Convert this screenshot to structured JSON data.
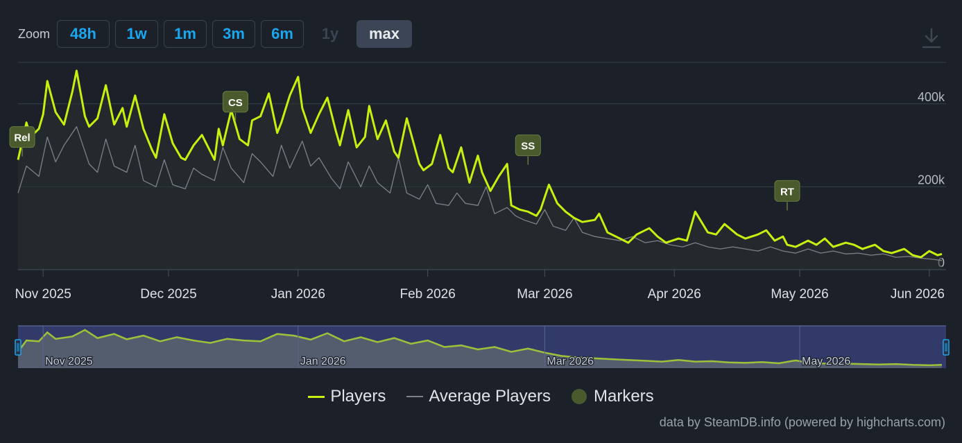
{
  "zoom": {
    "label": "Zoom",
    "buttons": [
      {
        "label": "48h",
        "state": "normal"
      },
      {
        "label": "1w",
        "state": "normal"
      },
      {
        "label": "1m",
        "state": "normal"
      },
      {
        "label": "3m",
        "state": "normal"
      },
      {
        "label": "6m",
        "state": "normal"
      },
      {
        "label": "1y",
        "state": "disabled"
      },
      {
        "label": "max",
        "state": "active"
      }
    ]
  },
  "download_icon": "download-icon",
  "credit": "data by SteamDB.info (powered by highcharts.com)",
  "colors": {
    "background": "#1b2029",
    "players": "#c6f00e",
    "average": "#7d8288",
    "marker": "#4a5a2c",
    "navigator_mask": "#333c6b",
    "grid": "#3a414c"
  },
  "chart_data": {
    "type": "line",
    "x_unit": "date",
    "xlim": [
      "2025-10-26",
      "2026-06-05"
    ],
    "ylim": [
      0,
      500000
    ],
    "y_ticks": [
      {
        "value": 0,
        "label": "0"
      },
      {
        "value": 200000,
        "label": "200k"
      },
      {
        "value": 400000,
        "label": "400k"
      }
    ],
    "x_ticks": [
      {
        "date": "2025-11-01",
        "label": "Nov 2025"
      },
      {
        "date": "2025-12-01",
        "label": "Dec 2025"
      },
      {
        "date": "2026-01-01",
        "label": "Jan 2026"
      },
      {
        "date": "2026-02-01",
        "label": "Feb 2026"
      },
      {
        "date": "2026-03-01",
        "label": "Mar 2026"
      },
      {
        "date": "2026-04-01",
        "label": "Apr 2026"
      },
      {
        "date": "2026-05-01",
        "label": "May 2026"
      },
      {
        "date": "2026-06-01",
        "label": "Jun 2026"
      }
    ],
    "grid": true,
    "legend_position": "bottom-center",
    "series": [
      {
        "name": "Players",
        "color": "#c6f00e",
        "x": [
          "2025-10-26",
          "2025-10-28",
          "2025-10-29",
          "2025-10-31",
          "2025-11-01",
          "2025-11-02",
          "2025-11-04",
          "2025-11-06",
          "2025-11-08",
          "2025-11-09",
          "2025-11-11",
          "2025-11-12",
          "2025-11-14",
          "2025-11-16",
          "2025-11-18",
          "2025-11-20",
          "2025-11-21",
          "2025-11-23",
          "2025-11-25",
          "2025-11-27",
          "2025-11-28",
          "2025-11-30",
          "2025-12-02",
          "2025-12-04",
          "2025-12-05",
          "2025-12-07",
          "2025-12-09",
          "2025-12-12",
          "2025-12-13",
          "2025-12-14",
          "2025-12-16",
          "2025-12-18",
          "2025-12-20",
          "2025-12-21",
          "2025-12-23",
          "2025-12-25",
          "2025-12-27",
          "2025-12-28",
          "2025-12-30",
          "2026-01-01",
          "2026-01-02",
          "2026-01-04",
          "2026-01-06",
          "2026-01-08",
          "2026-01-10",
          "2026-01-11",
          "2026-01-13",
          "2026-01-15",
          "2026-01-17",
          "2026-01-18",
          "2026-01-20",
          "2026-01-22",
          "2026-01-24",
          "2026-01-25",
          "2026-01-27",
          "2026-01-30",
          "2026-01-31",
          "2026-02-02",
          "2026-02-04",
          "2026-02-06",
          "2026-02-07",
          "2026-02-09",
          "2026-02-11",
          "2026-02-13",
          "2026-02-14",
          "2026-02-16",
          "2026-02-18",
          "2026-02-20",
          "2026-02-21",
          "2026-02-23",
          "2026-02-25",
          "2026-02-27",
          "2026-02-28",
          "2026-03-02",
          "2026-03-04",
          "2026-03-06",
          "2026-03-08",
          "2026-03-10",
          "2026-03-13",
          "2026-03-14",
          "2026-03-16",
          "2026-03-19",
          "2026-03-21",
          "2026-03-23",
          "2026-03-26",
          "2026-03-28",
          "2026-03-30",
          "2026-04-02",
          "2026-04-04",
          "2026-04-06",
          "2026-04-09",
          "2026-04-11",
          "2026-04-13",
          "2026-04-16",
          "2026-04-18",
          "2026-04-21",
          "2026-04-23",
          "2026-04-25",
          "2026-04-27",
          "2026-04-28",
          "2026-04-30",
          "2026-05-03",
          "2026-05-05",
          "2026-05-07",
          "2026-05-09",
          "2026-05-12",
          "2026-05-14",
          "2026-05-16",
          "2026-05-19",
          "2026-05-21",
          "2026-05-23",
          "2026-05-26",
          "2026-05-28",
          "2026-05-30",
          "2026-06-01",
          "2026-06-03",
          "2026-06-04"
        ],
        "y": [
          265000,
          355000,
          320000,
          340000,
          375000,
          455000,
          380000,
          350000,
          430000,
          480000,
          370000,
          345000,
          365000,
          445000,
          350000,
          390000,
          345000,
          420000,
          340000,
          290000,
          270000,
          375000,
          305000,
          270000,
          265000,
          300000,
          325000,
          265000,
          340000,
          300000,
          385000,
          315000,
          300000,
          360000,
          370000,
          425000,
          330000,
          355000,
          420000,
          465000,
          390000,
          330000,
          375000,
          415000,
          335000,
          300000,
          385000,
          295000,
          320000,
          395000,
          315000,
          360000,
          285000,
          270000,
          365000,
          255000,
          240000,
          255000,
          325000,
          245000,
          235000,
          295000,
          210000,
          275000,
          235000,
          190000,
          225000,
          255000,
          155000,
          145000,
          140000,
          130000,
          145000,
          205000,
          160000,
          140000,
          125000,
          115000,
          120000,
          135000,
          90000,
          75000,
          65000,
          85000,
          100000,
          80000,
          65000,
          75000,
          70000,
          140000,
          90000,
          85000,
          110000,
          85000,
          75000,
          85000,
          95000,
          70000,
          80000,
          60000,
          55000,
          70000,
          60000,
          75000,
          55000,
          65000,
          60000,
          50000,
          60000,
          45000,
          40000,
          50000,
          35000,
          30000,
          45000,
          35000,
          38000
        ]
      },
      {
        "name": "Average Players",
        "color": "#7d8288",
        "x": [
          "2025-10-26",
          "2025-10-28",
          "2025-10-31",
          "2025-11-02",
          "2025-11-04",
          "2025-11-06",
          "2025-11-09",
          "2025-11-12",
          "2025-11-14",
          "2025-11-16",
          "2025-11-18",
          "2025-11-21",
          "2025-11-23",
          "2025-11-25",
          "2025-11-28",
          "2025-11-30",
          "2025-12-02",
          "2025-12-05",
          "2025-12-07",
          "2025-12-09",
          "2025-12-12",
          "2025-12-14",
          "2025-12-16",
          "2025-12-19",
          "2025-12-21",
          "2025-12-23",
          "2025-12-26",
          "2025-12-28",
          "2025-12-30",
          "2026-01-02",
          "2026-01-04",
          "2026-01-06",
          "2026-01-09",
          "2026-01-11",
          "2026-01-13",
          "2026-01-16",
          "2026-01-18",
          "2026-01-20",
          "2026-01-23",
          "2026-01-25",
          "2026-01-27",
          "2026-01-30",
          "2026-02-01",
          "2026-02-03",
          "2026-02-06",
          "2026-02-08",
          "2026-02-10",
          "2026-02-13",
          "2026-02-15",
          "2026-02-17",
          "2026-02-20",
          "2026-02-22",
          "2026-02-24",
          "2026-02-27",
          "2026-03-01",
          "2026-03-03",
          "2026-03-06",
          "2026-03-08",
          "2026-03-10",
          "2026-03-13",
          "2026-03-16",
          "2026-03-19",
          "2026-03-22",
          "2026-03-25",
          "2026-03-28",
          "2026-03-31",
          "2026-04-03",
          "2026-04-06",
          "2026-04-09",
          "2026-04-12",
          "2026-04-15",
          "2026-04-18",
          "2026-04-21",
          "2026-04-24",
          "2026-04-27",
          "2026-04-30",
          "2026-05-03",
          "2026-05-06",
          "2026-05-09",
          "2026-05-12",
          "2026-05-15",
          "2026-05-18",
          "2026-05-21",
          "2026-05-24",
          "2026-05-27",
          "2026-05-30",
          "2026-06-02",
          "2026-06-04"
        ],
        "y": [
          185000,
          250000,
          225000,
          320000,
          260000,
          300000,
          345000,
          255000,
          235000,
          315000,
          250000,
          235000,
          300000,
          215000,
          200000,
          265000,
          205000,
          195000,
          245000,
          230000,
          215000,
          295000,
          245000,
          210000,
          280000,
          260000,
          225000,
          300000,
          245000,
          310000,
          250000,
          270000,
          220000,
          195000,
          260000,
          200000,
          250000,
          210000,
          185000,
          270000,
          185000,
          170000,
          205000,
          160000,
          155000,
          185000,
          160000,
          155000,
          200000,
          135000,
          150000,
          130000,
          120000,
          110000,
          145000,
          105000,
          95000,
          125000,
          90000,
          80000,
          75000,
          70000,
          80000,
          65000,
          70000,
          60000,
          55000,
          65000,
          55000,
          50000,
          55000,
          50000,
          45000,
          55000,
          45000,
          40000,
          50000,
          40000,
          45000,
          38000,
          40000,
          35000,
          38000,
          30000,
          32000,
          28000,
          25000,
          22000
        ]
      }
    ],
    "markers": [
      {
        "label": "Rel",
        "x": "2025-10-27",
        "y": 320000
      },
      {
        "label": "CS",
        "x": "2025-12-17",
        "y": 405000
      },
      {
        "label": "SS",
        "x": "2026-02-25",
        "y": 300000
      },
      {
        "label": "RT",
        "x": "2026-04-28",
        "y": 190000
      }
    ],
    "navigator": {
      "x_labels": [
        "Nov 2025",
        "Jan 2026",
        "Mar 2026",
        "May 2026"
      ],
      "x_label_dates": [
        "2025-11-01",
        "2026-01-01",
        "2026-03-01",
        "2026-05-01"
      ],
      "series": {
        "name": "Players",
        "x": [
          "2025-10-26",
          "2025-10-28",
          "2025-10-31",
          "2025-11-02",
          "2025-11-04",
          "2025-11-08",
          "2025-11-11",
          "2025-11-14",
          "2025-11-18",
          "2025-11-21",
          "2025-11-25",
          "2025-11-29",
          "2025-12-03",
          "2025-12-07",
          "2025-12-11",
          "2025-12-15",
          "2025-12-19",
          "2025-12-23",
          "2025-12-27",
          "2025-12-31",
          "2026-01-04",
          "2026-01-08",
          "2026-01-12",
          "2026-01-16",
          "2026-01-20",
          "2026-01-24",
          "2026-01-28",
          "2026-02-01",
          "2026-02-05",
          "2026-02-09",
          "2026-02-13",
          "2026-02-17",
          "2026-02-21",
          "2026-02-25",
          "2026-03-01",
          "2026-03-05",
          "2026-03-09",
          "2026-03-13",
          "2026-03-17",
          "2026-03-21",
          "2026-03-25",
          "2026-03-29",
          "2026-04-02",
          "2026-04-06",
          "2026-04-10",
          "2026-04-14",
          "2026-04-18",
          "2026-04-22",
          "2026-04-26",
          "2026-04-30",
          "2026-05-04",
          "2026-05-08",
          "2026-05-12",
          "2026-05-16",
          "2026-05-20",
          "2026-05-24",
          "2026-05-28",
          "2026-06-01",
          "2026-06-04"
        ],
        "y": [
          200000,
          340000,
          330000,
          440000,
          360000,
          390000,
          470000,
          370000,
          420000,
          355000,
          400000,
          330000,
          380000,
          340000,
          310000,
          360000,
          340000,
          330000,
          420000,
          400000,
          350000,
          430000,
          330000,
          380000,
          320000,
          370000,
          300000,
          340000,
          260000,
          280000,
          230000,
          260000,
          200000,
          240000,
          190000,
          150000,
          130000,
          120000,
          110000,
          100000,
          90000,
          80000,
          100000,
          80000,
          85000,
          70000,
          65000,
          75000,
          60000,
          95000,
          60000,
          55000,
          55000,
          50000,
          45000,
          50000,
          40000,
          35000,
          40000
        ]
      }
    }
  }
}
